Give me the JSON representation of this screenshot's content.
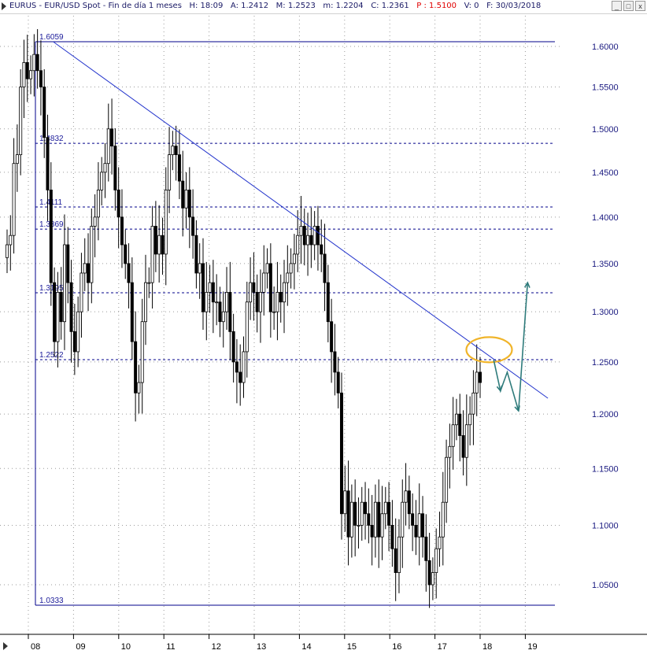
{
  "header": {
    "symbol": "EURUS",
    "description": "EUR/USD Spot",
    "period": "Fin de día 1 meses",
    "time": "H: 18:09",
    "a_field": "A: 1.2412",
    "m_field": "M: 1.2523",
    "min_field": "m: 1.2204",
    "c_field": "C: 1.2361",
    "p_field": "P : 1.5100",
    "v_field": "V: 0",
    "date_field": "F: 30/03/2018"
  },
  "window_buttons": [
    "_",
    "□",
    "x"
  ],
  "colors": {
    "candle": "#000000",
    "levels": "#00008b",
    "trendline": "#2233cc",
    "forecast": "#2e7b7b",
    "highlight": "#f0b429",
    "grid": "#9a9a9a"
  },
  "chart_data": {
    "type": "candlestick",
    "title": "EURUS - EUR/USD Spot - Fin de día 1 meses",
    "y_axis": {
      "side": "right",
      "scale": "log",
      "range": [
        1.03,
        1.62
      ],
      "ticks": [
        "1.6000",
        "1.5500",
        "1.5000",
        "1.4500",
        "1.4000",
        "1.3500",
        "1.3000",
        "1.2500",
        "1.2000",
        "1.1500",
        "1.1000",
        "1.0500"
      ]
    },
    "x_axis": {
      "ticks": [
        "08",
        "09",
        "10",
        "11",
        "12",
        "13",
        "14",
        "15",
        "16",
        "17",
        "18",
        "19"
      ]
    },
    "grid": true,
    "horizontal_levels": [
      {
        "value": 1.6059,
        "label": "1.6059",
        "style": "solid"
      },
      {
        "value": 1.4832,
        "label": "1.4832",
        "style": "dashed"
      },
      {
        "value": 1.4111,
        "label": "1.4111",
        "style": "dashed"
      },
      {
        "value": 1.3869,
        "label": "1.3869",
        "style": "dashed"
      },
      {
        "value": 1.3195,
        "label": "1.3195",
        "style": "dashed"
      },
      {
        "value": 1.2522,
        "label": "1.2522",
        "style": "dashed"
      },
      {
        "value": 1.0333,
        "label": "1.0333",
        "style": "solid"
      }
    ],
    "trendline": {
      "from": {
        "x": 2008.55,
        "y": 1.6059
      },
      "to": {
        "x": 2019.5,
        "y": 1.215
      }
    },
    "highlight_ellipse": {
      "x": 2018.2,
      "y": 1.262
    },
    "forecast_path": [
      {
        "x": 2018.3,
        "y": 1.252
      },
      {
        "x": 2018.45,
        "y": 1.222
      },
      {
        "x": 2018.6,
        "y": 1.24
      },
      {
        "x": 2018.85,
        "y": 1.203
      },
      {
        "x": 2019.05,
        "y": 1.33
      }
    ],
    "candles_close": [
      1.37,
      1.38,
      1.46,
      1.47,
      1.55,
      1.58,
      1.56,
      1.57,
      1.59,
      1.57,
      1.55,
      1.49,
      1.43,
      1.33,
      1.27,
      1.32,
      1.29,
      1.37,
      1.33,
      1.28,
      1.26,
      1.3,
      1.34,
      1.35,
      1.33,
      1.39,
      1.4,
      1.43,
      1.45,
      1.46,
      1.5,
      1.48,
      1.43,
      1.4,
      1.37,
      1.35,
      1.33,
      1.27,
      1.22,
      1.23,
      1.29,
      1.33,
      1.33,
      1.39,
      1.36,
      1.38,
      1.36,
      1.43,
      1.47,
      1.48,
      1.47,
      1.44,
      1.41,
      1.43,
      1.4,
      1.38,
      1.34,
      1.35,
      1.3,
      1.32,
      1.33,
      1.31,
      1.31,
      1.29,
      1.3,
      1.32,
      1.28,
      1.25,
      1.24,
      1.23,
      1.26,
      1.31,
      1.33,
      1.32,
      1.3,
      1.32,
      1.34,
      1.35,
      1.3,
      1.3,
      1.32,
      1.31,
      1.33,
      1.34,
      1.35,
      1.36,
      1.38,
      1.39,
      1.37,
      1.38,
      1.37,
      1.39,
      1.37,
      1.36,
      1.33,
      1.29,
      1.26,
      1.24,
      1.22,
      1.11,
      1.13,
      1.09,
      1.12,
      1.1,
      1.1,
      1.12,
      1.11,
      1.1,
      1.09,
      1.12,
      1.09,
      1.11,
      1.12,
      1.1,
      1.08,
      1.06,
      1.09,
      1.12,
      1.13,
      1.11,
      1.1,
      1.09,
      1.11,
      1.09,
      1.07,
      1.05,
      1.06,
      1.08,
      1.09,
      1.12,
      1.16,
      1.17,
      1.19,
      1.2,
      1.18,
      1.16,
      1.19,
      1.2,
      1.22,
      1.24,
      1.23
    ]
  }
}
